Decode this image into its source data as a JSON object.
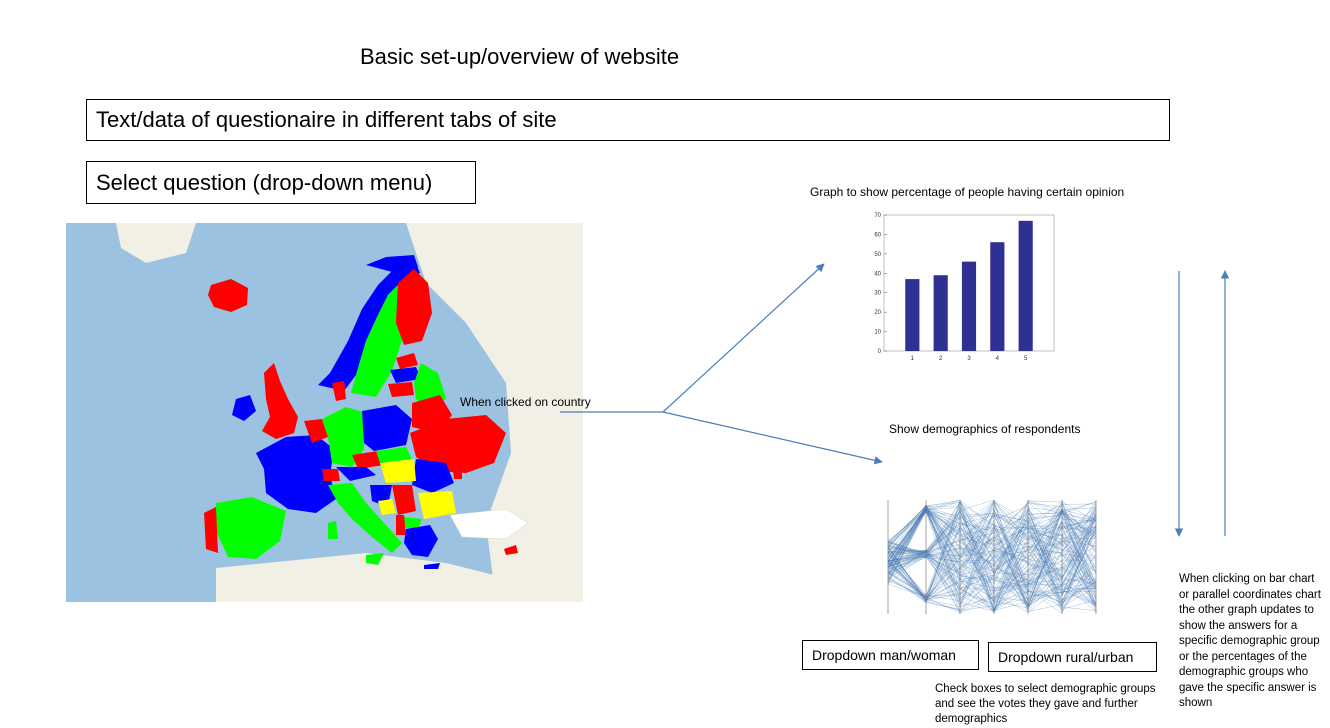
{
  "header": {
    "title": "Basic set-up/overview of website",
    "tabs_box_label": "Text/data of questionaire in different tabs of site",
    "select_box_label": "Select question (drop-down menu)"
  },
  "map": {
    "click_label": "When clicked on country",
    "colors": {
      "sea": "#9bc2e1",
      "land": "#f2efe4",
      "red": "#ff0000",
      "green": "#00ff00",
      "blue": "#0000ff",
      "yellow": "#ffff00"
    }
  },
  "bar_panel": {
    "title": "Graph to show percentage of people having certain opinion"
  },
  "chart_data": [
    {
      "type": "bar",
      "categories": [
        "1",
        "2",
        "3",
        "4",
        "5"
      ],
      "values": [
        37,
        39,
        46,
        56,
        67
      ],
      "ylim": [
        0,
        70
      ],
      "yticks": [
        0,
        10,
        20,
        30,
        40,
        50,
        60,
        70
      ],
      "bar_color": "#2e3192"
    }
  ],
  "demographics_panel": {
    "title": "Show demographics of respondents",
    "chart_type": "parallel-coordinates",
    "line_color": "#4a7db3",
    "dropdowns": [
      "Dropdown man/woman",
      "Dropdown rural/urban"
    ],
    "checkbox_note": "Check boxes to select demographic groups and see the votes they gave and further demographics"
  },
  "update_note": "When clicking on bar chart or parallel coordinates chart the other graph updates to show the answers for a specific demographic group or the percentages of the demographic groups who gave the specific answer is shown",
  "connector_color": "#4a7ebb"
}
